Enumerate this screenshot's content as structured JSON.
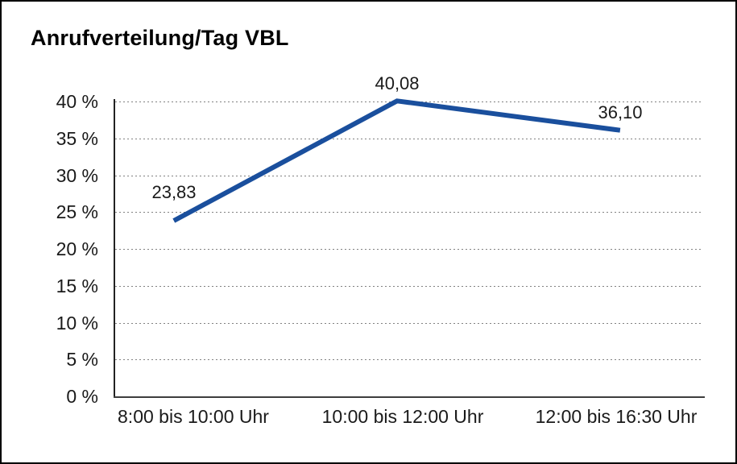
{
  "window": {
    "background": "#ffffff",
    "border_color": "#000000"
  },
  "chart_data": {
    "type": "line",
    "title": "Anrufverteilung/Tag VBL",
    "categories": [
      "8:00 bis 10:00 Uhr",
      "10:00 bis 12:00 Uhr",
      "12:00 bis 16:30 Uhr"
    ],
    "values": [
      23.83,
      40.08,
      36.1
    ],
    "value_labels": [
      "23,83",
      "40,08",
      "36,10"
    ],
    "unit": "%",
    "xlabel": "",
    "ylabel": "",
    "ylim": [
      0,
      40
    ],
    "y_tick_step": 5,
    "y_tick_labels": [
      "0 %",
      "5 %",
      "10 %",
      "15 %",
      "20 %",
      "25 %",
      "30 %",
      "35 %",
      "40 %"
    ],
    "grid": "horizontal-dotted",
    "legend_position": "none",
    "line_color": "#1a4f9d",
    "axis_color": "#333333",
    "text_color": "#1a1a1a"
  }
}
